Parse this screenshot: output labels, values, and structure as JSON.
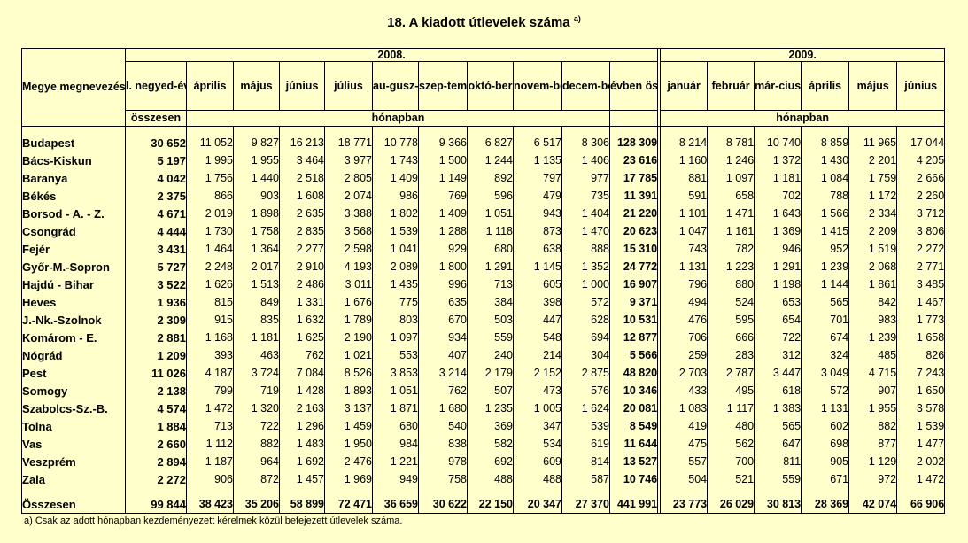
{
  "title": "18. A kiadott útlevelek száma",
  "title_note": "a)",
  "header": {
    "county_col": "Megye megnevezése",
    "year_2008": "2008.",
    "year_2009": "2009.",
    "q1_label": "I. negyed-évben",
    "q1_sub": "összesen",
    "months_2008": [
      "április",
      "május",
      "június",
      "július",
      "au-gusz-tus",
      "szep-tember",
      "októ-ber",
      "novem-ber",
      "decem-ber"
    ],
    "year_total": "évben össze-sen",
    "months_2009": [
      "január",
      "február",
      "már-cius",
      "április",
      "május",
      "június"
    ],
    "unit": "hónapban"
  },
  "rows": [
    {
      "name": "Budapest",
      "q1": "30 652",
      "m": [
        "11 052",
        "9 827",
        "16 213",
        "18 771",
        "10 778",
        "9 366",
        "6 827",
        "6 517",
        "8 306"
      ],
      "total": "128 309",
      "y": [
        "8 214",
        "8 781",
        "10 740",
        "8 859",
        "11 965",
        "17 044"
      ]
    },
    {
      "name": "Bács-Kiskun",
      "q1": "5 197",
      "m": [
        "1 995",
        "1 955",
        "3 464",
        "3 977",
        "1 743",
        "1 500",
        "1 244",
        "1 135",
        "1 406"
      ],
      "total": "23 616",
      "y": [
        "1 160",
        "1 246",
        "1 372",
        "1 430",
        "2 201",
        "4 205"
      ]
    },
    {
      "name": "Baranya",
      "q1": "4 042",
      "m": [
        "1 756",
        "1 440",
        "2 518",
        "2 805",
        "1 409",
        "1 149",
        "892",
        "797",
        "977"
      ],
      "total": "17 785",
      "y": [
        "881",
        "1 097",
        "1 181",
        "1 084",
        "1 759",
        "2 666"
      ]
    },
    {
      "name": "Békés",
      "q1": "2 375",
      "m": [
        "866",
        "903",
        "1 608",
        "2 074",
        "986",
        "769",
        "596",
        "479",
        "735"
      ],
      "total": "11 391",
      "y": [
        "591",
        "658",
        "702",
        "788",
        "1 172",
        "2 260"
      ]
    },
    {
      "name": "Borsod - A. - Z.",
      "q1": "4 671",
      "m": [
        "2 019",
        "1 898",
        "2 635",
        "3 388",
        "1 802",
        "1 409",
        "1 051",
        "943",
        "1 404"
      ],
      "total": "21 220",
      "y": [
        "1 101",
        "1 471",
        "1 643",
        "1 566",
        "2 334",
        "3 712"
      ]
    },
    {
      "name": "Csongrád",
      "q1": "4 444",
      "m": [
        "1 730",
        "1 758",
        "2 835",
        "3 568",
        "1 539",
        "1 288",
        "1 118",
        "873",
        "1 470"
      ],
      "total": "20 623",
      "y": [
        "1 047",
        "1 161",
        "1 369",
        "1 415",
        "2 209",
        "3 806"
      ]
    },
    {
      "name": "Fejér",
      "q1": "3 431",
      "m": [
        "1 464",
        "1 364",
        "2 277",
        "2 598",
        "1 041",
        "929",
        "680",
        "638",
        "888"
      ],
      "total": "15 310",
      "y": [
        "743",
        "782",
        "946",
        "952",
        "1 519",
        "2 272"
      ]
    },
    {
      "name": "Győr-M.-Sopron",
      "q1": "5 727",
      "m": [
        "2 248",
        "2 017",
        "2 910",
        "4 193",
        "2 089",
        "1 800",
        "1 291",
        "1 145",
        "1 352"
      ],
      "total": "24 772",
      "y": [
        "1 131",
        "1 223",
        "1 291",
        "1 239",
        "2 068",
        "2 771"
      ]
    },
    {
      "name": "Hajdú - Bihar",
      "q1": "3 522",
      "m": [
        "1 626",
        "1 513",
        "2 486",
        "3 011",
        "1 435",
        "996",
        "713",
        "605",
        "1 000"
      ],
      "total": "16 907",
      "y": [
        "796",
        "880",
        "1 198",
        "1 144",
        "1 861",
        "3 485"
      ]
    },
    {
      "name": "Heves",
      "q1": "1 936",
      "m": [
        "815",
        "849",
        "1 331",
        "1 676",
        "775",
        "635",
        "384",
        "398",
        "572"
      ],
      "total": "9 371",
      "y": [
        "494",
        "524",
        "653",
        "565",
        "842",
        "1 467"
      ]
    },
    {
      "name": "J.-Nk.-Szolnok",
      "q1": "2 309",
      "m": [
        "915",
        "835",
        "1 632",
        "1 789",
        "803",
        "670",
        "503",
        "447",
        "628"
      ],
      "total": "10 531",
      "y": [
        "476",
        "595",
        "654",
        "701",
        "983",
        "1 773"
      ]
    },
    {
      "name": "Komárom - E.",
      "q1": "2 881",
      "m": [
        "1 168",
        "1 181",
        "1 625",
        "2 190",
        "1 097",
        "934",
        "559",
        "548",
        "694"
      ],
      "total": "12 877",
      "y": [
        "706",
        "666",
        "722",
        "674",
        "1 239",
        "1 658"
      ]
    },
    {
      "name": "Nógrád",
      "q1": "1 209",
      "m": [
        "393",
        "463",
        "762",
        "1 021",
        "553",
        "407",
        "240",
        "214",
        "304"
      ],
      "total": "5 566",
      "y": [
        "259",
        "283",
        "312",
        "324",
        "485",
        "826"
      ]
    },
    {
      "name": "Pest",
      "q1": "11 026",
      "m": [
        "4 187",
        "3 724",
        "7 084",
        "8 526",
        "3 853",
        "3 214",
        "2 179",
        "2 152",
        "2 875"
      ],
      "total": "48 820",
      "y": [
        "2 703",
        "2 787",
        "3 447",
        "3 049",
        "4 715",
        "7 243"
      ]
    },
    {
      "name": "Somogy",
      "q1": "2 138",
      "m": [
        "799",
        "719",
        "1 428",
        "1 893",
        "1 051",
        "762",
        "507",
        "473",
        "576"
      ],
      "total": "10 346",
      "y": [
        "433",
        "495",
        "618",
        "572",
        "907",
        "1 650"
      ]
    },
    {
      "name": "Szabolcs-Sz.-B.",
      "q1": "4 574",
      "m": [
        "1 472",
        "1 320",
        "2 163",
        "3 137",
        "1 871",
        "1 680",
        "1 235",
        "1 005",
        "1 624"
      ],
      "total": "20 081",
      "y": [
        "1 083",
        "1 117",
        "1 383",
        "1 131",
        "1 955",
        "3 578"
      ]
    },
    {
      "name": "Tolna",
      "q1": "1 884",
      "m": [
        "713",
        "722",
        "1 296",
        "1 459",
        "680",
        "540",
        "369",
        "347",
        "539"
      ],
      "total": "8 549",
      "y": [
        "419",
        "480",
        "565",
        "602",
        "882",
        "1 539"
      ]
    },
    {
      "name": "Vas",
      "q1": "2 660",
      "m": [
        "1 112",
        "882",
        "1 483",
        "1 950",
        "984",
        "838",
        "582",
        "534",
        "619"
      ],
      "total": "11 644",
      "y": [
        "475",
        "562",
        "647",
        "698",
        "877",
        "1 477"
      ]
    },
    {
      "name": "Veszprém",
      "q1": "2 894",
      "m": [
        "1 187",
        "964",
        "1 692",
        "2 476",
        "1 221",
        "978",
        "692",
        "609",
        "814"
      ],
      "total": "13 527",
      "y": [
        "557",
        "700",
        "811",
        "905",
        "1 129",
        "2 002"
      ]
    },
    {
      "name": "Zala",
      "q1": "2 272",
      "m": [
        "906",
        "872",
        "1 457",
        "1 969",
        "949",
        "758",
        "488",
        "488",
        "587"
      ],
      "total": "10 746",
      "y": [
        "504",
        "521",
        "559",
        "671",
        "972",
        "1 472"
      ]
    }
  ],
  "total_row": {
    "name": "Összesen",
    "q1": "99 844",
    "m": [
      "38 423",
      "35 206",
      "58 899",
      "72 471",
      "36 659",
      "30 622",
      "22 150",
      "20 347",
      "27 370"
    ],
    "total": "441 991",
    "y": [
      "23 773",
      "26 029",
      "30 813",
      "28 369",
      "42 074",
      "66 906"
    ]
  },
  "footnote": "a) Csak az adott hónapban kezdeményezett kérelmek közül befejezett útlevelek száma."
}
